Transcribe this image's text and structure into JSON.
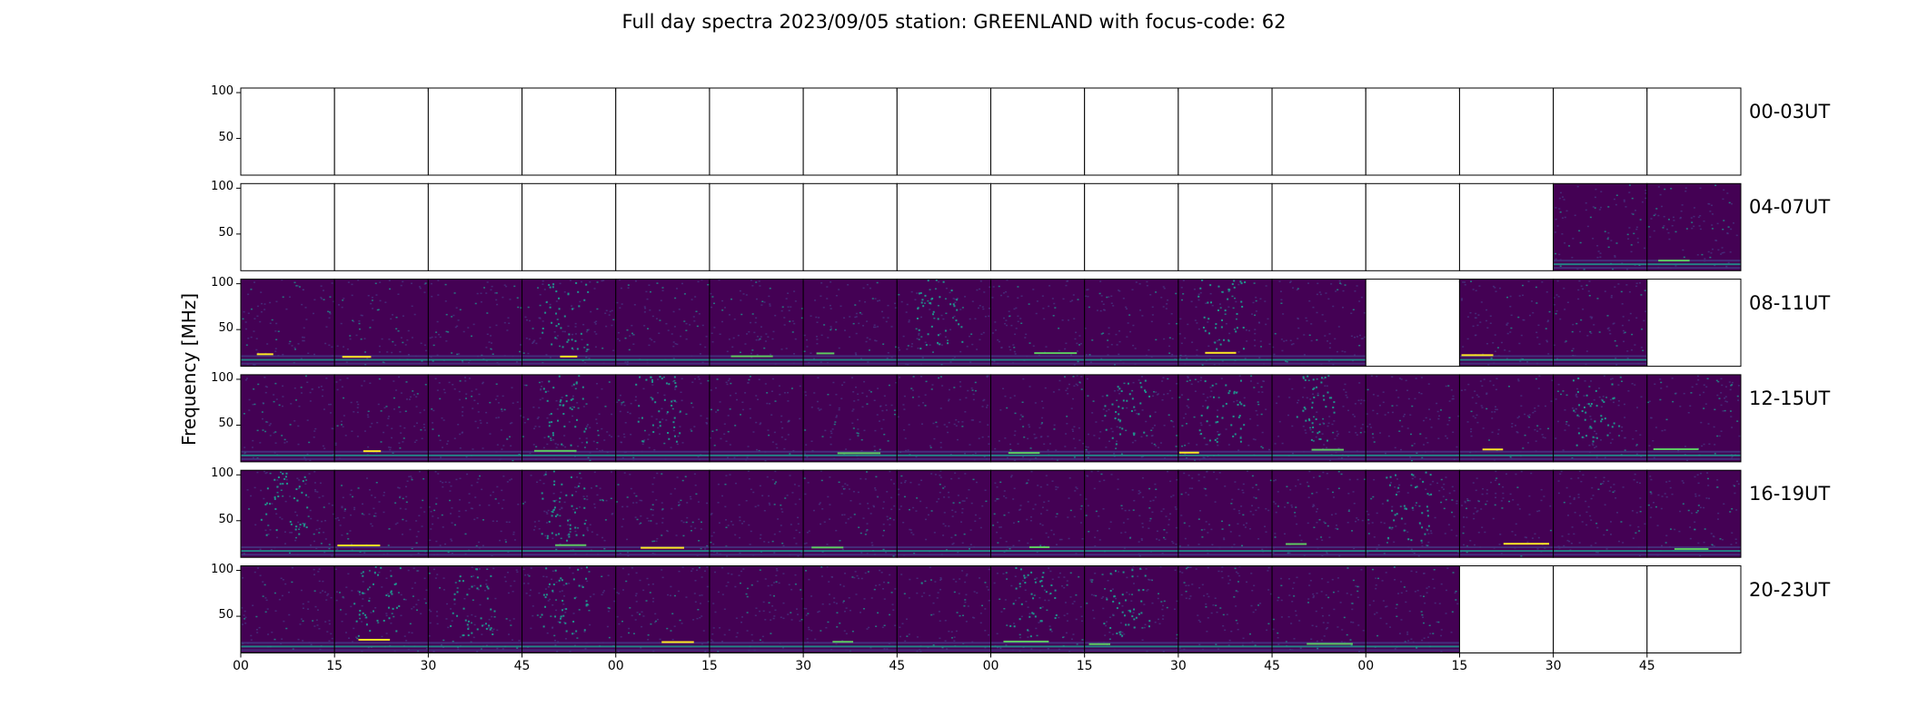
{
  "figure": {
    "title": "Full day spectra 2023/09/05 station: GREENLAND with focus-code: 62"
  },
  "chart_data": {
    "type": "heatmap",
    "title": "Full day spectra 2023/09/05 station: GREENLAND with focus-code: 62",
    "ylabel": "Frequency [MHz]",
    "xlabel": "",
    "ylim": [
      10,
      105
    ],
    "y_ticks": [
      "100",
      "50"
    ],
    "x_ticks": [
      "00",
      "15",
      "30",
      "45",
      "00",
      "15",
      "30",
      "45",
      "00",
      "15",
      "30",
      "45",
      "00",
      "15",
      "30",
      "45"
    ],
    "colormap": "viridis",
    "colors": {
      "background": "#440154",
      "low": "#46337e",
      "mid": "#21918c",
      "high": "#5ec962",
      "peak": "#fde725"
    },
    "rows": [
      {
        "label": "00-03UT",
        "panels_with_data": [
          0,
          0,
          0,
          0,
          0,
          0,
          0,
          0,
          0,
          0,
          0,
          0,
          0,
          0,
          0,
          0
        ]
      },
      {
        "label": "04-07UT",
        "panels_with_data": [
          0,
          0,
          0,
          0,
          0,
          0,
          0,
          0,
          0,
          0,
          0,
          0,
          0,
          0,
          1,
          1
        ]
      },
      {
        "label": "08-11UT",
        "panels_with_data": [
          1,
          1,
          1,
          1,
          1,
          1,
          1,
          1,
          1,
          1,
          1,
          1,
          0,
          1,
          1,
          0
        ]
      },
      {
        "label": "12-15UT",
        "panels_with_data": [
          1,
          1,
          1,
          1,
          1,
          1,
          1,
          1,
          1,
          1,
          1,
          1,
          1,
          1,
          1,
          1
        ]
      },
      {
        "label": "16-19UT",
        "panels_with_data": [
          1,
          1,
          1,
          1,
          1,
          1,
          1,
          1,
          1,
          1,
          1,
          1,
          1,
          1,
          1,
          1
        ]
      },
      {
        "label": "20-23UT",
        "panels_with_data": [
          1,
          1,
          1,
          1,
          1,
          1,
          1,
          1,
          1,
          1,
          1,
          1,
          1,
          0,
          0,
          0
        ]
      }
    ]
  }
}
